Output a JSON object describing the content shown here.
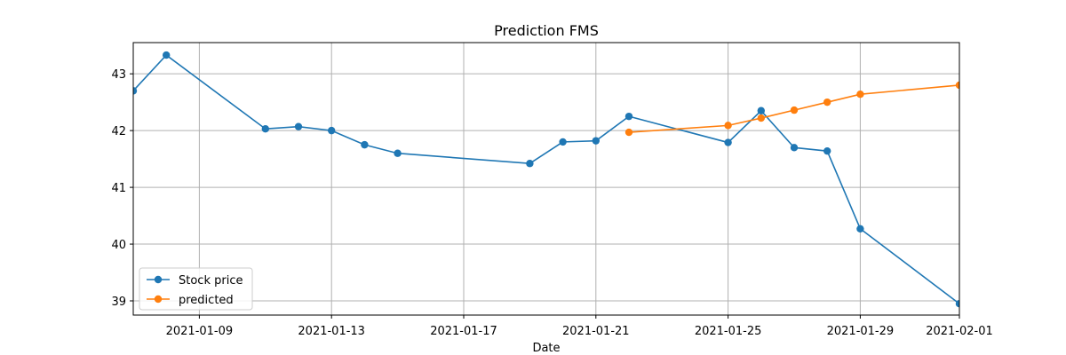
{
  "chart_data": {
    "type": "line",
    "title": "Prediction FMS",
    "xlabel": "Date",
    "ylabel": "",
    "xlim": [
      "2021-01-07",
      "2021-02-01"
    ],
    "ylim": [
      38.75,
      43.55
    ],
    "grid": true,
    "legend_position": "lower-left",
    "x_ticks": [
      "2021-01-09",
      "2021-01-13",
      "2021-01-17",
      "2021-01-21",
      "2021-01-25",
      "2021-01-29",
      "2021-02-01"
    ],
    "y_ticks": [
      39,
      40,
      41,
      42,
      43
    ],
    "series": [
      {
        "name": "Stock price",
        "color": "#1f77b4",
        "x": [
          "2021-01-07",
          "2021-01-08",
          "2021-01-11",
          "2021-01-12",
          "2021-01-13",
          "2021-01-14",
          "2021-01-15",
          "2021-01-19",
          "2021-01-20",
          "2021-01-21",
          "2021-01-22",
          "2021-01-25",
          "2021-01-26",
          "2021-01-27",
          "2021-01-28",
          "2021-01-29",
          "2021-02-01"
        ],
        "values": [
          42.7,
          43.33,
          42.03,
          42.07,
          42.0,
          41.75,
          41.6,
          41.42,
          41.8,
          41.82,
          42.25,
          41.79,
          42.35,
          41.7,
          41.64,
          40.27,
          38.95
        ]
      },
      {
        "name": "predicted",
        "color": "#ff7f0e",
        "x": [
          "2021-01-22",
          "2021-01-25",
          "2021-01-26",
          "2021-01-27",
          "2021-01-28",
          "2021-01-29",
          "2021-02-01"
        ],
        "values": [
          41.97,
          42.09,
          42.22,
          42.36,
          42.5,
          42.64,
          42.8
        ]
      }
    ]
  }
}
